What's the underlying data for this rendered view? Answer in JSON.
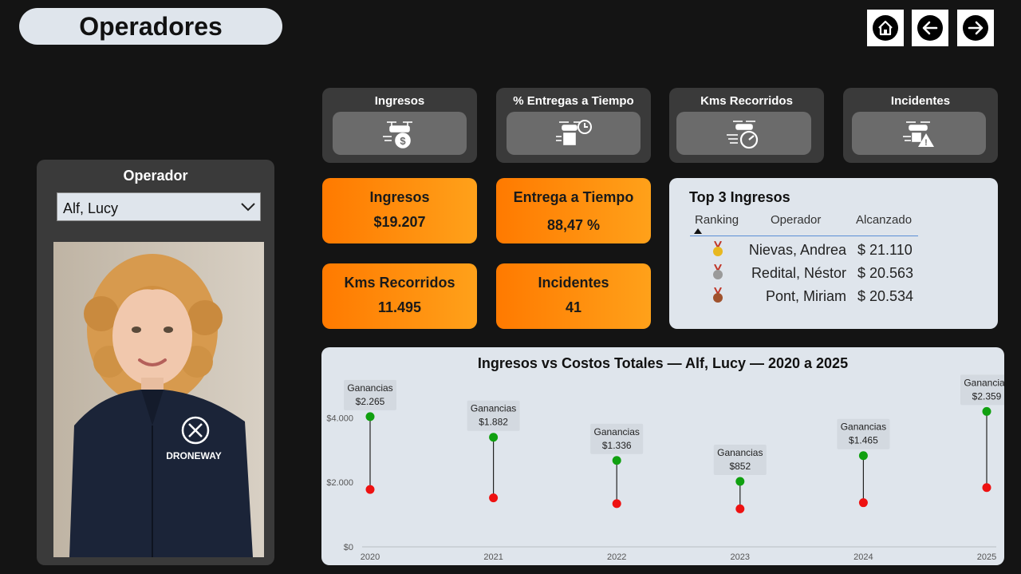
{
  "page": {
    "title": "Operadores"
  },
  "nav": {
    "home_icon": "home-icon",
    "back_icon": "arrow-left-icon",
    "forward_icon": "arrow-right-icon"
  },
  "categories": [
    {
      "label": "Ingresos",
      "icon": "drone-money-icon"
    },
    {
      "label": "% Entregas a Tiempo",
      "icon": "drone-clock-icon"
    },
    {
      "label": "Kms Recorridos",
      "icon": "drone-speed-icon"
    },
    {
      "label": "Incidentes",
      "icon": "drone-warning-icon"
    }
  ],
  "kpis": [
    {
      "label": "Ingresos",
      "value": "$19.207"
    },
    {
      "label": "Entrega a Tiempo",
      "value": "88,47 %"
    },
    {
      "label": "Kms Recorridos",
      "value": "11.495"
    },
    {
      "label": "Incidentes",
      "value": "41"
    }
  ],
  "top3": {
    "title": "Top 3 Ingresos",
    "columns": [
      "Ranking",
      "Operador",
      "Alcanzado"
    ],
    "rows": [
      {
        "medal": "gold-medal-icon",
        "operador": "Nievas, Andrea",
        "alcanzado": "$ 21.110"
      },
      {
        "medal": "silver-medal-icon",
        "operador": "Redital, Néstor",
        "alcanzado": "$ 20.563"
      },
      {
        "medal": "bronze-medal-icon",
        "operador": "Pont, Miriam",
        "alcanzado": "$ 20.534"
      }
    ]
  },
  "operator": {
    "panel_title": "Operador",
    "selected": "Alf, Lucy",
    "photo_icon": "operator-photo",
    "logo_text": "DRONEWAY"
  },
  "colors": {
    "accent_start": "#ff7a00",
    "accent_end": "#ffa11a",
    "ingresos": "#10a010",
    "costos": "#ee1111"
  },
  "chart_data": {
    "type": "dumbbell",
    "title": "Ingresos vs Costos Totales — Alf, Lucy — 2020 a 2025",
    "x": [
      "2020",
      "2021",
      "2022",
      "2023",
      "2024",
      "2025"
    ],
    "series": [
      {
        "values": [
          4040,
          3400,
          2680,
          2030,
          2830,
          4200
        ]
      },
      {
        "values": [
          1780,
          1520,
          1340,
          1180,
          1370,
          1840
        ]
      }
    ],
    "annotations": [
      {
        "label": "Ganancias",
        "value": "$2.265"
      },
      {
        "label": "Ganancias",
        "value": "$1.882"
      },
      {
        "label": "Ganancias",
        "value": "$1.336"
      },
      {
        "label": "Ganancias",
        "value": "$852"
      },
      {
        "label": "Ganancias",
        "value": "$1.465"
      },
      {
        "label": "Ganancias",
        "value": "$2.359"
      }
    ],
    "yticks": [
      "$0",
      "$2.000",
      "$4.000"
    ],
    "ytick_values": [
      0,
      2000,
      4000
    ],
    "ylim": [
      0,
      5300
    ],
    "grid": false
  }
}
